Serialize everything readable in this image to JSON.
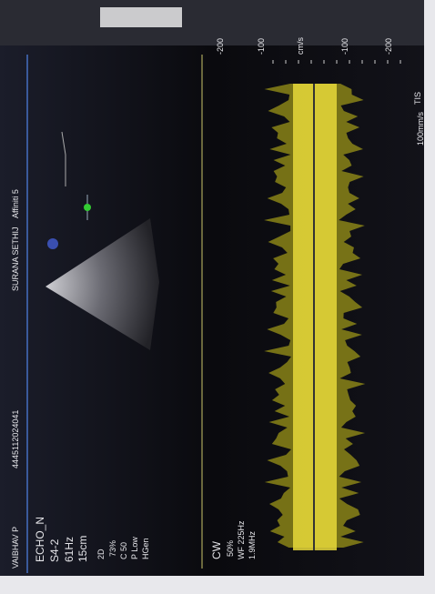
{
  "header": {
    "patient": "VAIBHAV P",
    "patient_id": "4445112024041",
    "institution": "SURANA SETHIJ",
    "system": "Affiniti 5",
    "tis": "TIS"
  },
  "exam": {
    "preset": "ECHO_N",
    "probe": "S4-2",
    "frame_rate": "61Hz",
    "depth": "15cm"
  },
  "mode_2d": {
    "label": "2D",
    "gain": "73%",
    "compression": "C 50",
    "persistence": "P Low",
    "resolution": "HGen"
  },
  "mode_cw": {
    "label": "CW",
    "gain": "50%",
    "wall_filter": "WF 225Hz",
    "frequency": "1.9MHz"
  },
  "scale": {
    "labels": [
      "-200",
      "-100",
      "cm/s",
      "-100",
      "-200"
    ],
    "sweep": "100mm/s"
  }
}
